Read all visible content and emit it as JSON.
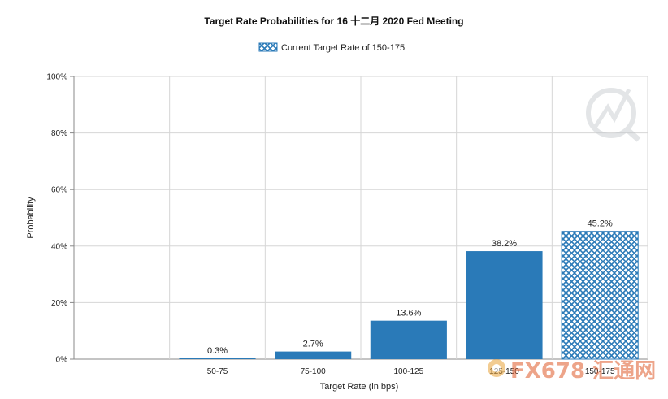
{
  "chart_data": {
    "type": "bar",
    "title": "Target Rate Probabilities for 16 十二月 2020 Fed Meeting",
    "xlabel": "Target Rate (in bps)",
    "ylabel": "Probability",
    "categories": [
      "50-75",
      "75-100",
      "100-125",
      "125-150",
      "150-175"
    ],
    "values": [
      0.3,
      2.7,
      13.6,
      38.2,
      45.2
    ],
    "data_labels": [
      "0.3%",
      "2.7%",
      "13.6%",
      "38.2%",
      "45.2%"
    ],
    "ylim": [
      0,
      100
    ],
    "yticks": [
      0,
      20,
      40,
      60,
      80,
      100
    ],
    "ytick_labels": [
      "0%",
      "20%",
      "40%",
      "60%",
      "80%",
      "100%"
    ],
    "grid": true,
    "legend": {
      "placement": "top-center",
      "entries": [
        "Current Target Rate of 150-175"
      ]
    },
    "highlight_category": "150-175",
    "colors": {
      "bar": "#2a7ab8",
      "highlight_pattern": "#2a7ab8",
      "grid": "#d6d6d6",
      "axis": "#888888"
    }
  },
  "watermark": {
    "text": "FX678 汇通网"
  }
}
